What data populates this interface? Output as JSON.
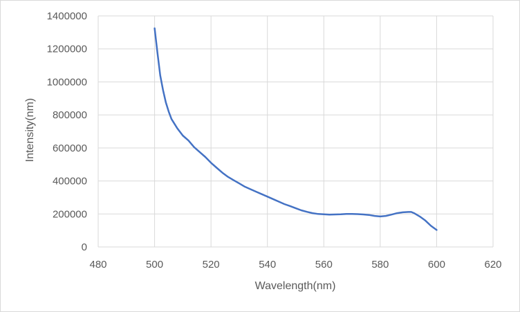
{
  "chart_data": {
    "type": "line",
    "title": "",
    "xlabel": "Wavelength(nm)",
    "ylabel": "Intensity(nm)",
    "xlim": [
      480,
      620
    ],
    "ylim": [
      0,
      1400000
    ],
    "x_ticks": [
      480,
      500,
      520,
      540,
      560,
      580,
      600,
      620
    ],
    "y_ticks": [
      0,
      200000,
      400000,
      600000,
      800000,
      1000000,
      1200000,
      1400000
    ],
    "x_tick_labels": [
      "480",
      "500",
      "520",
      "540",
      "560",
      "580",
      "600",
      "620"
    ],
    "y_tick_labels": [
      "0",
      "200000",
      "400000",
      "600000",
      "800000",
      "1000000",
      "1200000",
      "1400000"
    ],
    "grid": true,
    "legend": "none",
    "series": [
      {
        "color": "#4472C4",
        "x": [
          500,
          501,
          502,
          503,
          504,
          505,
          506,
          508,
          510,
          512,
          514,
          516,
          518,
          520,
          522,
          524,
          526,
          528,
          530,
          532,
          534,
          536,
          538,
          540,
          542,
          544,
          546,
          548,
          550,
          552,
          554,
          556,
          558,
          560,
          562,
          564,
          566,
          568,
          570,
          572,
          574,
          576,
          578,
          580,
          582,
          584,
          586,
          588,
          590,
          591,
          592,
          594,
          596,
          598,
          600
        ],
        "y": [
          1325000,
          1180000,
          1040000,
          950000,
          875000,
          820000,
          775000,
          720000,
          675000,
          645000,
          605000,
          575000,
          545000,
          510000,
          480000,
          450000,
          425000,
          405000,
          385000,
          365000,
          350000,
          335000,
          320000,
          305000,
          290000,
          275000,
          260000,
          248000,
          235000,
          222000,
          213000,
          205000,
          200000,
          198000,
          196000,
          197000,
          198000,
          200000,
          200000,
          199000,
          197000,
          194000,
          188000,
          185000,
          188000,
          196000,
          205000,
          210000,
          212000,
          212000,
          205000,
          185000,
          160000,
          128000,
          103000
        ]
      }
    ]
  }
}
